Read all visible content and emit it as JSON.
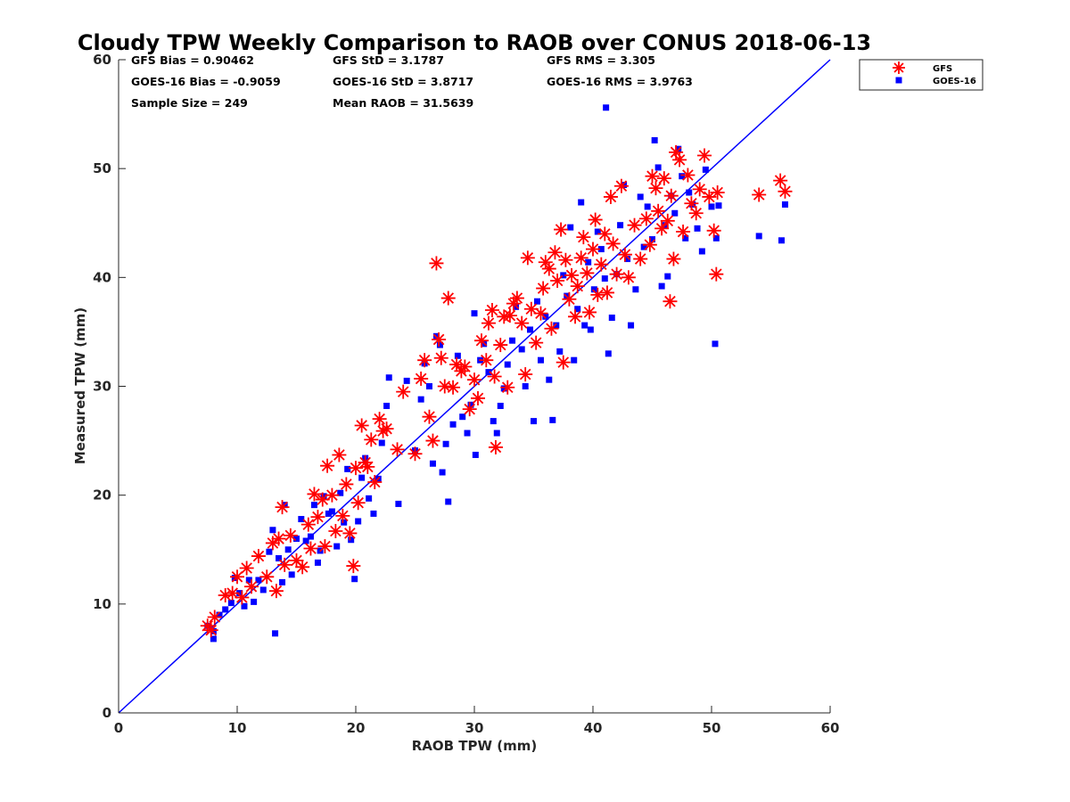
{
  "chart_data": {
    "type": "scatter",
    "title": "Cloudy TPW Weekly Comparison to RAOB over CONUS 2018-06-13",
    "xlabel": "RAOB TPW (mm)",
    "ylabel": "Measured TPW (mm)",
    "xlim": [
      0,
      60
    ],
    "ylim": [
      0,
      60
    ],
    "xticks": [
      0,
      10,
      20,
      30,
      40,
      50,
      60
    ],
    "yticks": [
      0,
      10,
      20,
      30,
      40,
      50,
      60
    ],
    "grid": false,
    "legend_position": "outside top-right",
    "reference_line": {
      "x": [
        0,
        60
      ],
      "y": [
        0,
        60
      ],
      "color": "#0000ff"
    },
    "stats": [
      {
        "text": "GFS Bias = 0.90462",
        "row": 0,
        "col": 0
      },
      {
        "text": "GFS StD = 3.1787",
        "row": 0,
        "col": 1
      },
      {
        "text": "GFS RMS = 3.305",
        "row": 0,
        "col": 2
      },
      {
        "text": "GOES-16 Bias = -0.9059",
        "row": 1,
        "col": 0
      },
      {
        "text": "GOES-16 StD = 3.8717",
        "row": 1,
        "col": 1
      },
      {
        "text": "GOES-16 RMS = 3.9763",
        "row": 1,
        "col": 2
      },
      {
        "text": "Sample Size = 249",
        "row": 2,
        "col": 0
      },
      {
        "text": "Mean RAOB = 31.5639",
        "row": 2,
        "col": 1
      }
    ],
    "series": [
      {
        "name": "GFS",
        "marker": "asterisk",
        "color": "#ff0000",
        "points": [
          [
            7.5,
            8
          ],
          [
            7.8,
            7.6
          ],
          [
            8.1,
            8.8
          ],
          [
            9,
            10.8
          ],
          [
            9.6,
            11
          ],
          [
            10,
            12.5
          ],
          [
            10.4,
            10.6
          ],
          [
            10.8,
            13.3
          ],
          [
            11.2,
            11.6
          ],
          [
            11.8,
            14.4
          ],
          [
            12.5,
            12.5
          ],
          [
            13,
            15.6
          ],
          [
            13.3,
            11.2
          ],
          [
            13.5,
            16
          ],
          [
            13.8,
            18.9
          ],
          [
            14,
            13.6
          ],
          [
            14.5,
            16.3
          ],
          [
            15,
            14
          ],
          [
            15.5,
            13.4
          ],
          [
            16,
            17.3
          ],
          [
            16.2,
            15.1
          ],
          [
            16.5,
            20.1
          ],
          [
            16.8,
            18
          ],
          [
            17.2,
            19.6
          ],
          [
            17.4,
            15.3
          ],
          [
            17.6,
            22.7
          ],
          [
            18,
            20
          ],
          [
            18.3,
            16.7
          ],
          [
            18.6,
            23.7
          ],
          [
            18.9,
            18.1
          ],
          [
            19.2,
            21
          ],
          [
            19.5,
            16.5
          ],
          [
            19.8,
            13.5
          ],
          [
            20,
            22.5
          ],
          [
            20.2,
            19.3
          ],
          [
            20.5,
            26.4
          ],
          [
            20.8,
            23
          ],
          [
            21,
            22.6
          ],
          [
            21.3,
            25.1
          ],
          [
            21.6,
            21.2
          ],
          [
            22,
            27
          ],
          [
            22.3,
            25.9
          ],
          [
            22.6,
            26.1
          ],
          [
            23.5,
            24.2
          ],
          [
            24,
            29.5
          ],
          [
            25,
            23.8
          ],
          [
            25.5,
            30.7
          ],
          [
            25.8,
            32.4
          ],
          [
            26.2,
            27.2
          ],
          [
            26.5,
            25
          ],
          [
            26.8,
            41.3
          ],
          [
            27,
            34.3
          ],
          [
            27.2,
            32.6
          ],
          [
            27.5,
            30
          ],
          [
            27.8,
            38.1
          ],
          [
            28.2,
            29.9
          ],
          [
            28.5,
            32
          ],
          [
            28.9,
            31.4
          ],
          [
            29.2,
            31.8
          ],
          [
            29.6,
            27.9
          ],
          [
            30,
            30.6
          ],
          [
            30.3,
            28.9
          ],
          [
            30.6,
            34.2
          ],
          [
            31,
            32.4
          ],
          [
            31.2,
            35.8
          ],
          [
            31.5,
            37
          ],
          [
            31.7,
            30.9
          ],
          [
            31.8,
            24.4
          ],
          [
            32.2,
            33.8
          ],
          [
            32.5,
            36.4
          ],
          [
            32.8,
            29.9
          ],
          [
            33,
            36.5
          ],
          [
            33.3,
            37.6
          ],
          [
            33.6,
            38.1
          ],
          [
            34,
            35.8
          ],
          [
            34.3,
            31.1
          ],
          [
            34.5,
            41.8
          ],
          [
            34.8,
            37.1
          ],
          [
            35.2,
            34
          ],
          [
            35.6,
            36.7
          ],
          [
            35.8,
            39
          ],
          [
            36,
            41.4
          ],
          [
            36.3,
            40.8
          ],
          [
            36.5,
            35.3
          ],
          [
            36.8,
            42.3
          ],
          [
            37,
            39.7
          ],
          [
            37.3,
            44.4
          ],
          [
            37.5,
            32.2
          ],
          [
            37.7,
            41.6
          ],
          [
            38,
            38
          ],
          [
            38.2,
            40.2
          ],
          [
            38.5,
            36.4
          ],
          [
            38.7,
            39.2
          ],
          [
            39,
            41.8
          ],
          [
            39.2,
            43.7
          ],
          [
            39.5,
            40.4
          ],
          [
            39.7,
            36.8
          ],
          [
            40,
            42.6
          ],
          [
            40.2,
            45.3
          ],
          [
            40.4,
            38.4
          ],
          [
            40.7,
            41.2
          ],
          [
            41,
            44
          ],
          [
            41.2,
            38.6
          ],
          [
            41.5,
            47.4
          ],
          [
            41.7,
            43.1
          ],
          [
            42,
            40.3
          ],
          [
            42.4,
            48.4
          ],
          [
            42.7,
            42.1
          ],
          [
            43,
            40
          ],
          [
            43.5,
            44.8
          ],
          [
            44,
            41.7
          ],
          [
            44.5,
            45.4
          ],
          [
            44.8,
            43
          ],
          [
            45,
            49.3
          ],
          [
            45.3,
            48.2
          ],
          [
            45.5,
            46.1
          ],
          [
            45.8,
            44.5
          ],
          [
            46,
            49.1
          ],
          [
            46.3,
            45.2
          ],
          [
            46.5,
            37.8
          ],
          [
            46.6,
            47.5
          ],
          [
            46.8,
            41.7
          ],
          [
            47,
            51.5
          ],
          [
            47.3,
            50.8
          ],
          [
            47.6,
            44.2
          ],
          [
            48,
            49.4
          ],
          [
            48.3,
            46.8
          ],
          [
            48.7,
            45.9
          ],
          [
            49,
            48.1
          ],
          [
            49.4,
            51.2
          ],
          [
            49.8,
            47.4
          ],
          [
            50.2,
            44.3
          ],
          [
            50.4,
            40.3
          ],
          [
            50.5,
            47.8
          ],
          [
            54,
            47.6
          ],
          [
            55.8,
            48.9
          ],
          [
            56.2,
            47.9
          ]
        ]
      },
      {
        "name": "GOES-16",
        "marker": "square",
        "color": "#0000ff",
        "points": [
          [
            7.5,
            8
          ],
          [
            8,
            6.8
          ],
          [
            8,
            7.5
          ],
          [
            8.5,
            9
          ],
          [
            9,
            9.5
          ],
          [
            9.5,
            10.1
          ],
          [
            9.8,
            12.4
          ],
          [
            10.2,
            11
          ],
          [
            10.6,
            9.8
          ],
          [
            11,
            12.2
          ],
          [
            11.4,
            10.2
          ],
          [
            11.8,
            12.2
          ],
          [
            12.2,
            11.3
          ],
          [
            12.7,
            14.8
          ],
          [
            13,
            16.8
          ],
          [
            13.2,
            7.3
          ],
          [
            13.5,
            14.2
          ],
          [
            13.8,
            12
          ],
          [
            14,
            19.1
          ],
          [
            14.3,
            15
          ],
          [
            14.6,
            12.7
          ],
          [
            15,
            16
          ],
          [
            15.4,
            17.8
          ],
          [
            15.8,
            15.8
          ],
          [
            16.2,
            16.2
          ],
          [
            16.5,
            19.1
          ],
          [
            16.8,
            13.8
          ],
          [
            17,
            14.9
          ],
          [
            17.3,
            19.9
          ],
          [
            17.7,
            18.3
          ],
          [
            18,
            18.5
          ],
          [
            18.4,
            15.3
          ],
          [
            18.7,
            20.2
          ],
          [
            19,
            17.5
          ],
          [
            19.3,
            22.4
          ],
          [
            19.6,
            15.9
          ],
          [
            19.9,
            12.3
          ],
          [
            20.2,
            17.6
          ],
          [
            20.5,
            21.6
          ],
          [
            20.8,
            23.4
          ],
          [
            21.1,
            19.7
          ],
          [
            21.5,
            18.3
          ],
          [
            21.9,
            21.5
          ],
          [
            22.2,
            24.8
          ],
          [
            22.6,
            28.2
          ],
          [
            22.8,
            30.8
          ],
          [
            23.6,
            19.2
          ],
          [
            24.3,
            30.5
          ],
          [
            25,
            24.1
          ],
          [
            25.5,
            28.8
          ],
          [
            25.8,
            32.1
          ],
          [
            26.2,
            30
          ],
          [
            26.5,
            22.9
          ],
          [
            26.8,
            34.6
          ],
          [
            27.1,
            33.8
          ],
          [
            27.3,
            22.1
          ],
          [
            27.6,
            24.7
          ],
          [
            27.8,
            19.4
          ],
          [
            28.2,
            26.5
          ],
          [
            28.6,
            32.8
          ],
          [
            29,
            27.2
          ],
          [
            29.4,
            25.7
          ],
          [
            29.7,
            28.3
          ],
          [
            30,
            36.7
          ],
          [
            30.1,
            23.7
          ],
          [
            30.5,
            32.4
          ],
          [
            30.8,
            33.9
          ],
          [
            31.2,
            31.3
          ],
          [
            31.6,
            26.8
          ],
          [
            31.9,
            25.7
          ],
          [
            32.2,
            28.2
          ],
          [
            32.5,
            29.8
          ],
          [
            32.8,
            32
          ],
          [
            33.2,
            34.2
          ],
          [
            33.5,
            37.3
          ],
          [
            34,
            33.4
          ],
          [
            34.3,
            30
          ],
          [
            34.7,
            35.2
          ],
          [
            35,
            26.8
          ],
          [
            35.3,
            37.8
          ],
          [
            35.6,
            32.4
          ],
          [
            36,
            36.4
          ],
          [
            36.3,
            30.6
          ],
          [
            36.6,
            26.9
          ],
          [
            36.9,
            35.6
          ],
          [
            37.2,
            33.2
          ],
          [
            37.5,
            40.2
          ],
          [
            37.8,
            38.3
          ],
          [
            38.1,
            44.6
          ],
          [
            38.4,
            32.4
          ],
          [
            38.7,
            37.1
          ],
          [
            39,
            46.9
          ],
          [
            39.3,
            35.6
          ],
          [
            39.6,
            41.4
          ],
          [
            39.8,
            35.2
          ],
          [
            40.1,
            38.9
          ],
          [
            40.4,
            44.2
          ],
          [
            40.7,
            42.6
          ],
          [
            41,
            39.9
          ],
          [
            41.1,
            55.6
          ],
          [
            41.3,
            33
          ],
          [
            41.6,
            36.3
          ],
          [
            42,
            40.3
          ],
          [
            42.3,
            44.8
          ],
          [
            42.6,
            48.5
          ],
          [
            42.9,
            41.7
          ],
          [
            43.2,
            35.6
          ],
          [
            43.6,
            38.9
          ],
          [
            44,
            47.4
          ],
          [
            44.3,
            42.8
          ],
          [
            44.6,
            46.5
          ],
          [
            45,
            43.5
          ],
          [
            45.2,
            52.6
          ],
          [
            45.5,
            50.1
          ],
          [
            45.8,
            39.2
          ],
          [
            46.1,
            44.8
          ],
          [
            46.3,
            40.1
          ],
          [
            46.6,
            47.5
          ],
          [
            46.9,
            45.9
          ],
          [
            47.2,
            51.8
          ],
          [
            47.5,
            49.3
          ],
          [
            47.8,
            43.6
          ],
          [
            48.1,
            47.8
          ],
          [
            48.4,
            46.7
          ],
          [
            48.8,
            44.5
          ],
          [
            49.2,
            42.4
          ],
          [
            49.5,
            49.9
          ],
          [
            50,
            46.5
          ],
          [
            50.3,
            33.9
          ],
          [
            50.4,
            43.6
          ],
          [
            50.6,
            46.6
          ],
          [
            54,
            43.8
          ],
          [
            55.9,
            43.4
          ],
          [
            56.2,
            46.7
          ]
        ]
      }
    ]
  }
}
